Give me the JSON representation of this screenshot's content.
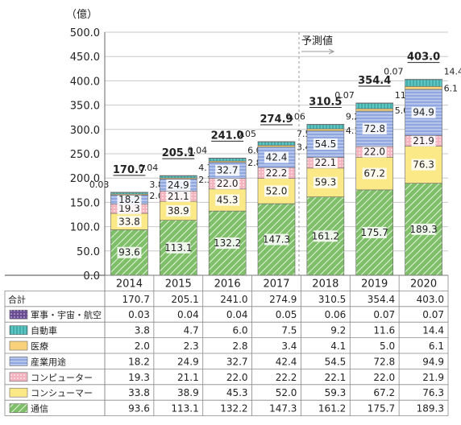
{
  "chart_data": {
    "type": "bar",
    "stacked": true,
    "unit_label": "（億）",
    "forecast_label": "予測値",
    "categories": [
      "2014",
      "2015",
      "2016",
      "2017",
      "2018",
      "2019",
      "2020"
    ],
    "total_label": "合計",
    "totals": [
      170.7,
      205.1,
      241.0,
      274.9,
      310.5,
      354.4,
      403.0
    ],
    "ylim": [
      0,
      500
    ],
    "yticks": [
      "0.0",
      "50.0",
      "100.0",
      "150.0",
      "200.0",
      "250.0",
      "300.0",
      "350.0",
      "400.0",
      "450.0",
      "500.0"
    ],
    "series": [
      {
        "name": "通信",
        "values": [
          93.6,
          113.1,
          132.2,
          147.3,
          161.2,
          175.7,
          189.3
        ],
        "color": "#7fbf6a",
        "pattern": "diag"
      },
      {
        "name": "コンシューマー",
        "values": [
          33.8,
          38.9,
          45.3,
          52.0,
          59.3,
          67.2,
          76.3
        ],
        "color": "#fbe887",
        "pattern": "none"
      },
      {
        "name": "コンピューター",
        "values": [
          19.3,
          21.1,
          22.0,
          22.2,
          22.1,
          22.0,
          21.9
        ],
        "color": "#f3b4bf",
        "pattern": "dots"
      },
      {
        "name": "産業用途",
        "values": [
          18.2,
          24.9,
          32.7,
          42.4,
          54.5,
          72.8,
          94.9
        ],
        "color": "#8fa6df",
        "pattern": "hlines"
      },
      {
        "name": "医療",
        "values": [
          2.0,
          2.3,
          2.8,
          3.4,
          4.1,
          5.0,
          6.1
        ],
        "color": "#f7d27a",
        "pattern": "none"
      },
      {
        "name": "自動車",
        "values": [
          3.8,
          4.7,
          6.0,
          7.5,
          9.2,
          11.6,
          14.4
        ],
        "color": "#5cc7c5",
        "pattern": "vlines"
      },
      {
        "name": "軍事・宇宙・航空",
        "values": [
          0.03,
          0.04,
          0.04,
          0.05,
          0.06,
          0.07,
          0.07
        ],
        "color": "#6a4c93",
        "pattern": "dots"
      }
    ],
    "table_values": {
      "totals": [
        "170.7",
        "205.1",
        "241.0",
        "274.9",
        "310.5",
        "354.4",
        "403.0"
      ],
      "rows": [
        {
          "name": "軍事・宇宙・航空",
          "values": [
            "0.03",
            "0.04",
            "0.04",
            "0.05",
            "0.06",
            "0.07",
            "0.07"
          ]
        },
        {
          "name": "自動車",
          "values": [
            "3.8",
            "4.7",
            "6.0",
            "7.5",
            "9.2",
            "11.6",
            "14.4"
          ]
        },
        {
          "name": "医療",
          "values": [
            "2.0",
            "2.3",
            "2.8",
            "3.4",
            "4.1",
            "5.0",
            "6.1"
          ]
        },
        {
          "name": "産業用途",
          "values": [
            "18.2",
            "24.9",
            "32.7",
            "42.4",
            "54.5",
            "72.8",
            "94.9"
          ]
        },
        {
          "name": "コンピューター",
          "values": [
            "19.3",
            "21.1",
            "22.0",
            "22.2",
            "22.1",
            "22.0",
            "21.9"
          ]
        },
        {
          "name": "コンシューマー",
          "values": [
            "33.8",
            "38.9",
            "45.3",
            "52.0",
            "59.3",
            "67.2",
            "76.3"
          ]
        },
        {
          "name": "通信",
          "values": [
            "93.6",
            "113.1",
            "132.2",
            "147.3",
            "161.2",
            "175.7",
            "189.3"
          ]
        }
      ]
    },
    "seg_labels": [
      [
        "93.6",
        "33.8",
        "19.3",
        "18.2"
      ],
      [
        "113.1",
        "38.9",
        "21.1",
        "24.9"
      ],
      [
        "132.2",
        "45.3",
        "22.0",
        "32.7"
      ],
      [
        "147.3",
        "52.0",
        "22.2",
        "42.4"
      ],
      [
        "161.2",
        "59.3",
        "22.1",
        "54.5"
      ],
      [
        "175.7",
        "67.2",
        "22.0",
        "72.8"
      ],
      [
        "189.3",
        "76.3",
        "21.9",
        "94.9"
      ]
    ],
    "small_labels": [
      {
        "mil": "0.03",
        "auto": "3.8",
        "med": "2.0"
      },
      {
        "mil": "0.04",
        "auto": "4.7",
        "med": "2.3"
      },
      {
        "mil": "0.04",
        "auto": "6.0",
        "med": "2.8"
      },
      {
        "mil": "0.05",
        "auto": "7.5",
        "med": "3.4"
      },
      {
        "mil": "0.06",
        "auto": "9.2",
        "med": "4.1"
      },
      {
        "mil": "0.07",
        "auto": "11.6",
        "med": "5.0"
      },
      {
        "mil": "0.07",
        "auto": "14.4",
        "med": "6.1"
      }
    ],
    "total_strings": [
      "170.7",
      "205.1",
      "241.0",
      "274.9",
      "310.5",
      "354.4",
      "403.0"
    ]
  }
}
